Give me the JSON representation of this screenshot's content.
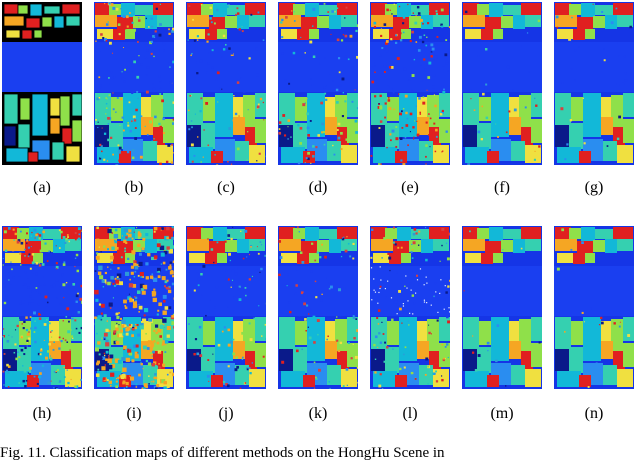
{
  "figure": {
    "panels": [
      {
        "label": "(a)",
        "variant": "ground-truth"
      },
      {
        "label": "(b)",
        "variant": "noisy"
      },
      {
        "label": "(c)",
        "variant": "medium"
      },
      {
        "label": "(d)",
        "variant": "medium"
      },
      {
        "label": "(e)",
        "variant": "noisy-red"
      },
      {
        "label": "(f)",
        "variant": "clean"
      },
      {
        "label": "(g)",
        "variant": "clean"
      },
      {
        "label": "(h)",
        "variant": "very-noisy"
      },
      {
        "label": "(i)",
        "variant": "chaotic"
      },
      {
        "label": "(j)",
        "variant": "medium"
      },
      {
        "label": "(k)",
        "variant": "medium"
      },
      {
        "label": "(l)",
        "variant": "speckled"
      },
      {
        "label": "(m)",
        "variant": "smooth"
      },
      {
        "label": "(n)",
        "variant": "smooth"
      }
    ],
    "caption": "Fig. 11.  Classification maps of different methods on the HongHu Scene in"
  },
  "colors": {
    "background_blue": "#1535e6",
    "river_blue": "#1a3ff0",
    "class_colors": [
      "#e02020",
      "#f5a623",
      "#12b8d8",
      "#35d0b0",
      "#8fe04a",
      "#2a8df0",
      "#0a1a8a",
      "#f0e040",
      "#2d9ad8",
      "#d84040"
    ]
  }
}
